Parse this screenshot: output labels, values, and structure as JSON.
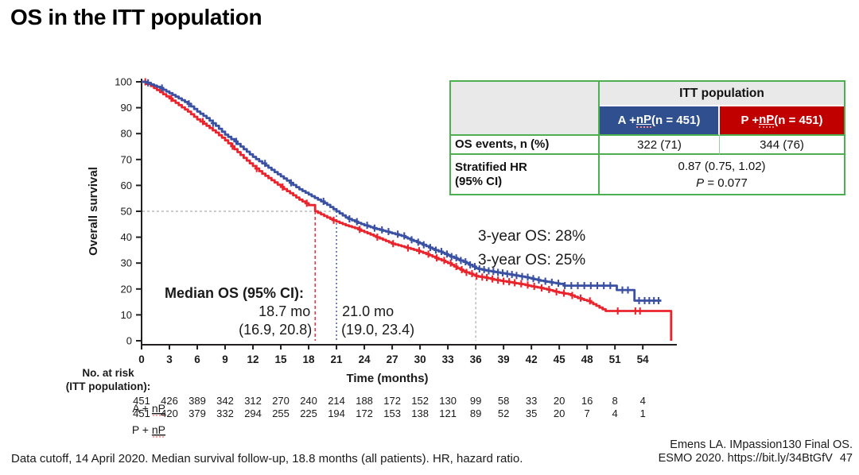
{
  "slide": {
    "title": "OS in the ITT population",
    "footnote": "Data cutoff, 14 April 2020. Median survival follow-up, 18.8 months (all patients). HR, hazard ratio.",
    "citation_line1": "Emens LA. IMpassion130 Final OS.",
    "citation_line2": "ESMO 2020. https://bit.ly/34BtGfV",
    "page_number": "47"
  },
  "colors": {
    "table_border_green": "#4CAF50",
    "header_gray": "#E9E9E9",
    "arm_a_header_bg": "#2F4F8F",
    "arm_p_header_bg": "#C00000",
    "curve_blue": "#3A51A3",
    "curve_red": "#EA242C",
    "text_blue": "#4A67B5",
    "text_red": "#F0393E",
    "axis": "#231F20",
    "ref_gray": "#999999"
  },
  "results_table": {
    "population_header": "ITT population",
    "columns": [
      {
        "label": "A + nP (n = 451)",
        "bg": "#2F4F8F"
      },
      {
        "label": "P + nP (n = 451)",
        "bg": "#C00000"
      }
    ],
    "os_events": {
      "label": "OS events, n (%)",
      "a": "322 (71)",
      "p": "344 (76)"
    },
    "stratified_hr": {
      "label_line1": "Stratified HR",
      "label_line2": "(95% CI)",
      "value": "0.87 (0.75, 1.02)",
      "p_italic": "P",
      "p_value": " = 0.077"
    }
  },
  "chart_data": {
    "type": "line",
    "subtype": "kaplan-meier",
    "xlabel": "Time (months)",
    "ylabel": "Overall survival",
    "xlim": [
      0,
      57.6
    ],
    "ylim": [
      0,
      100
    ],
    "xticks": [
      0,
      3,
      6,
      9,
      12,
      15,
      18,
      21,
      24,
      27,
      30,
      33,
      36,
      39,
      42,
      45,
      48,
      51,
      54
    ],
    "yticks": [
      0,
      10,
      20,
      30,
      40,
      50,
      60,
      70,
      80,
      90,
      100
    ],
    "grid": false,
    "median_annotation_title": "Median OS (95% CI):",
    "reference": {
      "median_line_y_pct": 50,
      "three_year_month": 36
    },
    "series": [
      {
        "name": "A + nP",
        "color": "#3A51A3",
        "text_color": "#4A67B5",
        "median_months": 21.0,
        "median_label": "21.0 mo",
        "ci_label": "(19.0, 23.4)",
        "three_year_os_pct": 28,
        "three_year_os_label": "3-year OS: 28%",
        "points": [
          [
            0,
            100
          ],
          [
            0.5,
            99.6
          ],
          [
            1,
            99
          ],
          [
            2,
            97.6
          ],
          [
            3,
            95.6
          ],
          [
            4,
            93.6
          ],
          [
            5,
            91.5
          ],
          [
            6,
            88.5
          ],
          [
            7,
            86
          ],
          [
            8,
            83
          ],
          [
            9,
            79.6
          ],
          [
            10,
            77
          ],
          [
            11,
            74
          ],
          [
            12,
            71
          ],
          [
            13,
            68.5
          ],
          [
            14,
            66
          ],
          [
            15,
            63.5
          ],
          [
            16,
            61
          ],
          [
            17,
            58.5
          ],
          [
            18,
            56.5
          ],
          [
            19,
            54.5
          ],
          [
            20,
            52.5
          ],
          [
            21,
            50
          ],
          [
            22,
            47.6
          ],
          [
            23,
            46
          ],
          [
            24,
            44.6
          ],
          [
            25,
            43.5
          ],
          [
            26,
            42.5
          ],
          [
            27,
            41.5
          ],
          [
            28,
            40.5
          ],
          [
            29,
            39
          ],
          [
            30,
            37.6
          ],
          [
            31,
            36
          ],
          [
            32,
            34.5
          ],
          [
            33,
            33
          ],
          [
            34,
            31.5
          ],
          [
            35,
            30
          ],
          [
            36,
            28
          ],
          [
            37,
            27.2
          ],
          [
            38,
            26.6
          ],
          [
            39,
            26
          ],
          [
            40,
            25.4
          ],
          [
            41,
            24.8
          ],
          [
            42,
            24
          ],
          [
            43,
            23.2
          ],
          [
            44,
            22.6
          ],
          [
            45,
            22
          ],
          [
            45.5,
            21.3
          ],
          [
            51,
            21.3
          ],
          [
            51.2,
            19.6
          ],
          [
            52.9,
            19.6
          ],
          [
            53.1,
            15.5
          ],
          [
            56,
            15.5
          ]
        ],
        "censor_times": [
          0.7,
          2.2,
          5.1,
          7.7,
          10.2,
          13.3,
          16.1,
          19.6,
          22.4,
          23.2,
          24.3,
          25.1,
          25.9,
          26.6,
          27.6,
          28.3,
          29.1,
          29.8,
          30.4,
          31.1,
          31.7,
          32.3,
          32.9,
          33.4,
          33.9,
          34.4,
          34.9,
          35.4,
          35.9,
          36.4,
          36.9,
          37.4,
          37.9,
          38.4,
          38.9,
          39.4,
          39.9,
          40.4,
          41.0,
          41.6,
          42.2,
          42.8,
          43.5,
          44.2,
          44.9,
          45.6,
          46.3,
          47.0,
          47.7,
          48.4,
          49.1,
          49.8,
          50.5,
          51.8,
          52.4,
          53.6,
          54.2,
          54.7,
          55.2,
          55.7
        ]
      },
      {
        "name": "P + nP",
        "color": "#EA242C",
        "text_color": "#F0393E",
        "median_months": 18.7,
        "median_label": "18.7 mo",
        "ci_label": "(16.9, 20.8)",
        "three_year_os_pct": 25,
        "three_year_os_label": "3-year OS: 25%",
        "points": [
          [
            0,
            100
          ],
          [
            0.5,
            99.2
          ],
          [
            1,
            98.4
          ],
          [
            2,
            96
          ],
          [
            3,
            93.6
          ],
          [
            4,
            91
          ],
          [
            5,
            88.5
          ],
          [
            6,
            85.5
          ],
          [
            7,
            83
          ],
          [
            8,
            80.4
          ],
          [
            9,
            77.4
          ],
          [
            10,
            74
          ],
          [
            11,
            70.6
          ],
          [
            12,
            67.5
          ],
          [
            13,
            64.5
          ],
          [
            14,
            62
          ],
          [
            15,
            59.4
          ],
          [
            16,
            57
          ],
          [
            17,
            54.5
          ],
          [
            18,
            52.4
          ],
          [
            18.7,
            50
          ],
          [
            19,
            49.4
          ],
          [
            20,
            47.6
          ],
          [
            21,
            46
          ],
          [
            22,
            44.6
          ],
          [
            23,
            43.5
          ],
          [
            24,
            42
          ],
          [
            25,
            40.5
          ],
          [
            26,
            39
          ],
          [
            27,
            37.5
          ],
          [
            28,
            36.5
          ],
          [
            29,
            35.5
          ],
          [
            30,
            34.4
          ],
          [
            31,
            33
          ],
          [
            32,
            31.5
          ],
          [
            33,
            30
          ],
          [
            34,
            28
          ],
          [
            35,
            26.4
          ],
          [
            36,
            25
          ],
          [
            37,
            24.4
          ],
          [
            38,
            23.6
          ],
          [
            39,
            23
          ],
          [
            40,
            22.4
          ],
          [
            41,
            21.8
          ],
          [
            42,
            21
          ],
          [
            43,
            20.4
          ],
          [
            44,
            19.5
          ],
          [
            45,
            18.6
          ],
          [
            46,
            18
          ],
          [
            47,
            16.5
          ],
          [
            48,
            15.4
          ],
          [
            49,
            13.5
          ],
          [
            50,
            11.5
          ],
          [
            57,
            11.5
          ],
          [
            57.05,
            0
          ]
        ],
        "censor_times": [
          0.4,
          3.2,
          6.6,
          9.8,
          12.4,
          15.2,
          17.8,
          20.7,
          23.5,
          25.4,
          27.1,
          28.7,
          29.9,
          30.9,
          31.8,
          32.6,
          33.3,
          33.9,
          34.5,
          35.0,
          35.6,
          36.1,
          36.7,
          37.2,
          37.8,
          38.4,
          39.0,
          39.6,
          40.2,
          40.9,
          41.6,
          42.3,
          43.1,
          43.9,
          44.7,
          45.5,
          46.4,
          47.3,
          48.3,
          51.3,
          53.2,
          53.7
        ]
      }
    ],
    "at_risk": {
      "header_line1": "No. at risk",
      "header_line2": "(ITT population):",
      "times": [
        0,
        3,
        6,
        9,
        12,
        15,
        18,
        21,
        24,
        27,
        30,
        33,
        36,
        39,
        42,
        45,
        48,
        51,
        54
      ],
      "rows": [
        {
          "label": "A + nP",
          "values": [
            451,
            426,
            389,
            342,
            312,
            270,
            240,
            214,
            188,
            172,
            152,
            130,
            99,
            58,
            33,
            20,
            16,
            8,
            4
          ]
        },
        {
          "label": "P + nP",
          "values": [
            451,
            420,
            379,
            332,
            294,
            255,
            225,
            194,
            172,
            153,
            138,
            121,
            89,
            52,
            35,
            20,
            7,
            4,
            1
          ]
        }
      ]
    }
  }
}
